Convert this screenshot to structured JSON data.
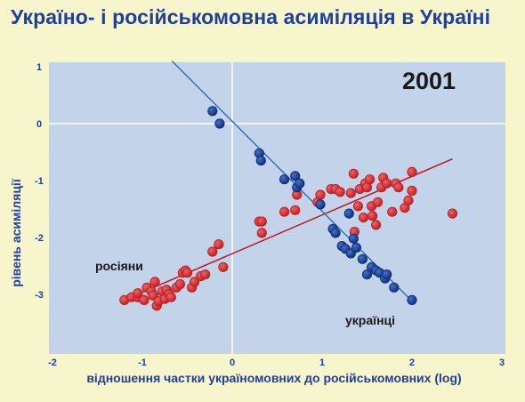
{
  "title": "Україно- і російськомовна асиміляція в Україні",
  "chart_data": {
    "type": "scatter",
    "title": "Україно- і російськомовна асиміляція в Україні",
    "annotation": "2001",
    "xlabel": "відношення частки україномовних  до російськомовних (log)",
    "ylabel": "рівень асиміляції",
    "xlim": [
      -2,
      3
    ],
    "ylim": [
      -4,
      1
    ],
    "x_ticks": [
      "-2",
      "-1",
      "0",
      "1",
      "2",
      "3"
    ],
    "x_tick_values": [
      -2,
      -1,
      0,
      1,
      2,
      3
    ],
    "y_ticks": [
      "1",
      "0",
      "-1",
      "-2",
      "-3"
    ],
    "y_tick_values": [
      1,
      0,
      -1,
      -2,
      -3
    ],
    "grid": false,
    "colors": {
      "plot_background": "#c3d3ea",
      "page_background": "#f6f5cc",
      "title": "#1f3f9e",
      "axis_text": "#1f3f9e",
      "russians": "#c41a1e",
      "ukrainians": "#0c2e7a",
      "russians_fit": "#c01020",
      "ukrainians_fit": "#2a6cc0"
    },
    "series": [
      {
        "name": "росіяни",
        "color_key": "russians",
        "points": [
          [
            -1.2,
            -3.1
          ],
          [
            -1.12,
            -3.05
          ],
          [
            -1.05,
            -3.05
          ],
          [
            -1.05,
            -2.98
          ],
          [
            -0.98,
            -3.1
          ],
          [
            -0.95,
            -2.88
          ],
          [
            -0.9,
            -2.95
          ],
          [
            -0.88,
            -3.02
          ],
          [
            -0.86,
            -2.78
          ],
          [
            -0.84,
            -3.2
          ],
          [
            -0.82,
            -3.12
          ],
          [
            -0.78,
            -2.95
          ],
          [
            -0.75,
            -3.08
          ],
          [
            -0.73,
            -2.92
          ],
          [
            -0.7,
            -3.0
          ],
          [
            -0.68,
            -3.05
          ],
          [
            -0.62,
            -2.88
          ],
          [
            -0.58,
            -2.82
          ],
          [
            -0.55,
            -2.62
          ],
          [
            -0.52,
            -2.58
          ],
          [
            -0.5,
            -2.62
          ],
          [
            -0.45,
            -2.88
          ],
          [
            -0.42,
            -2.78
          ],
          [
            -0.35,
            -2.68
          ],
          [
            -0.3,
            -2.65
          ],
          [
            -0.22,
            -2.25
          ],
          [
            -0.15,
            -2.12
          ],
          [
            -0.1,
            -2.52
          ],
          [
            0.3,
            -1.72
          ],
          [
            0.33,
            -1.72
          ],
          [
            0.33,
            -1.92
          ],
          [
            0.58,
            -1.55
          ],
          [
            0.7,
            -1.52
          ],
          [
            0.72,
            -1.25
          ],
          [
            0.95,
            -1.38
          ],
          [
            0.98,
            -1.25
          ],
          [
            1.1,
            -1.15
          ],
          [
            1.15,
            -1.15
          ],
          [
            1.2,
            -1.2
          ],
          [
            1.32,
            -1.22
          ],
          [
            1.35,
            -0.88
          ],
          [
            1.36,
            -1.9
          ],
          [
            1.4,
            -1.45
          ],
          [
            1.42,
            -1.15
          ],
          [
            1.46,
            -1.65
          ],
          [
            1.48,
            -1.05
          ],
          [
            1.5,
            -1.12
          ],
          [
            1.53,
            -0.98
          ],
          [
            1.55,
            -1.45
          ],
          [
            1.56,
            -1.62
          ],
          [
            1.6,
            -1.78
          ],
          [
            1.62,
            -1.38
          ],
          [
            1.66,
            -1.12
          ],
          [
            1.68,
            -0.95
          ],
          [
            1.72,
            -1.05
          ],
          [
            1.78,
            -1.55
          ],
          [
            1.82,
            -1.05
          ],
          [
            1.85,
            -1.12
          ],
          [
            1.92,
            -1.48
          ],
          [
            1.96,
            -1.35
          ],
          [
            2.0,
            -0.85
          ],
          [
            2.0,
            -1.18
          ],
          [
            2.45,
            -1.58
          ]
        ],
        "fit": [
          [
            -1.2,
            -3.1
          ],
          [
            2.45,
            -0.62
          ]
        ]
      },
      {
        "name": "українці",
        "color_key": "ukrainians",
        "points": [
          [
            -0.22,
            0.22
          ],
          [
            -0.14,
            0.0
          ],
          [
            0.3,
            -0.52
          ],
          [
            0.32,
            -0.65
          ],
          [
            0.58,
            -0.98
          ],
          [
            0.7,
            -0.92
          ],
          [
            0.72,
            -1.12
          ],
          [
            0.75,
            -1.05
          ],
          [
            0.98,
            -1.42
          ],
          [
            1.12,
            -1.85
          ],
          [
            1.15,
            -1.92
          ],
          [
            1.22,
            -2.15
          ],
          [
            1.26,
            -2.2
          ],
          [
            1.3,
            -1.58
          ],
          [
            1.32,
            -2.28
          ],
          [
            1.35,
            -2.02
          ],
          [
            1.38,
            -2.18
          ],
          [
            1.45,
            -2.38
          ],
          [
            1.5,
            -2.65
          ],
          [
            1.55,
            -2.52
          ],
          [
            1.6,
            -2.58
          ],
          [
            1.64,
            -2.62
          ],
          [
            1.7,
            -2.72
          ],
          [
            1.72,
            -2.65
          ],
          [
            1.8,
            -2.88
          ],
          [
            2.0,
            -3.1
          ]
        ],
        "fit": [
          [
            -0.67,
            1.1
          ],
          [
            2.0,
            -3.12
          ]
        ]
      }
    ]
  }
}
